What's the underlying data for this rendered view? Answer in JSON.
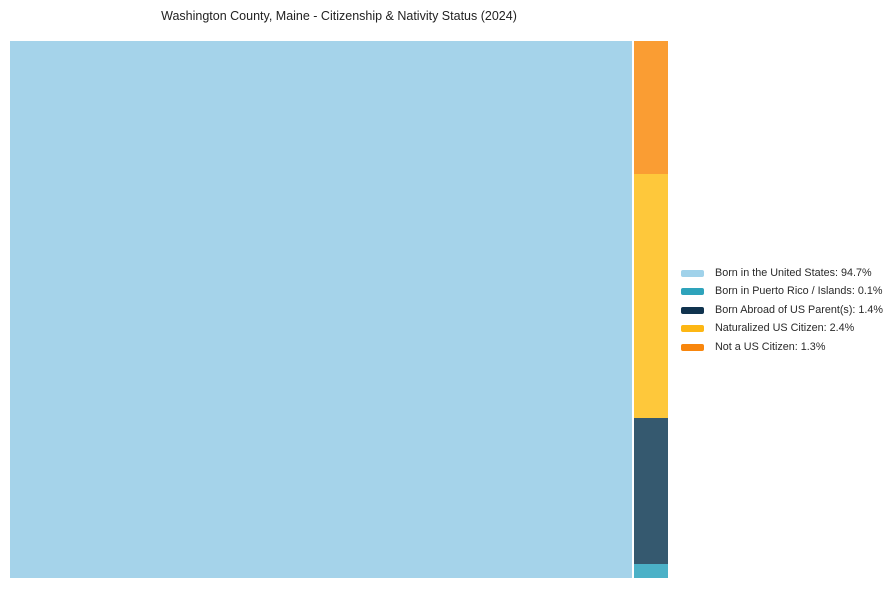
{
  "title": "Washington County, Maine - Citizenship & Nativity Status (2024)",
  "chart_data": {
    "type": "treemap",
    "title": "Washington County, Maine - Citizenship & Nativity Status (2024)",
    "unit": "percent",
    "legend_position": "right",
    "segments": [
      {
        "label": "Born in the United States",
        "value": 94.7,
        "fill": "#a5d3ea",
        "legend_color": "#a0d2ea"
      },
      {
        "label": "Born in Puerto Rico / Islands",
        "value": 0.1,
        "fill": "#4bb1c7",
        "legend_color": "#2ea3bb"
      },
      {
        "label": "Born Abroad of US Parent(s)",
        "value": 1.4,
        "fill": "#35596f",
        "legend_color": "#10334e"
      },
      {
        "label": "Naturalized US Citizen",
        "value": 2.4,
        "fill": "#fec83b",
        "legend_color": "#fdb714"
      },
      {
        "label": "Not a US Citizen",
        "value": 1.3,
        "fill": "#fa9d33",
        "legend_color": "#f8860d"
      }
    ]
  },
  "legend": {
    "items": [
      {
        "label": "Born in the United States: 94.7%",
        "color": "#a0d2ea"
      },
      {
        "label": "Born in Puerto Rico / Islands: 0.1%",
        "color": "#2ea3bb"
      },
      {
        "label": "Born Abroad of US Parent(s): 1.4%",
        "color": "#10334e"
      },
      {
        "label": "Naturalized US Citizen: 2.4%",
        "color": "#fdb714"
      },
      {
        "label": "Not a US Citizen: 1.3%",
        "color": "#f8860d"
      }
    ]
  }
}
